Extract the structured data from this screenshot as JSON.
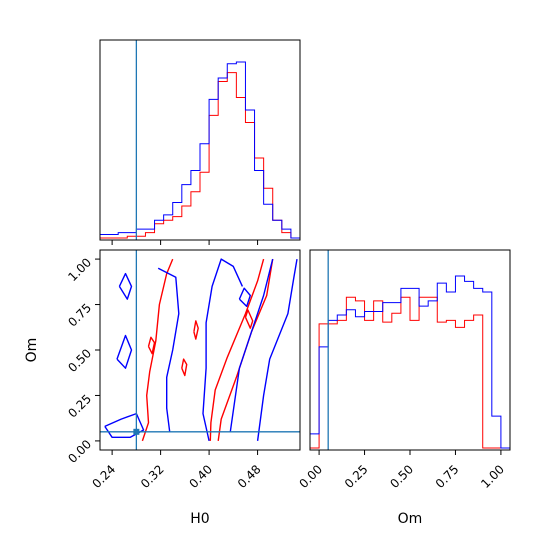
{
  "chart_data": {
    "type": "corner",
    "parameters": [
      "H0",
      "Om"
    ],
    "truth": {
      "H0": 0.28,
      "Om": 0.05
    },
    "colors": {
      "series_a": "#ff0000",
      "series_b": "#0000ff",
      "truth": "#1f77b4"
    },
    "axes": {
      "H0": {
        "range": [
          0.22,
          0.55
        ],
        "ticks": [
          0.24,
          0.32,
          0.4,
          0.48
        ],
        "tick_labels": [
          "0.24",
          "0.32",
          "0.40",
          "0.48"
        ]
      },
      "Om": {
        "range": [
          -0.05,
          1.05
        ],
        "ticks": [
          0.0,
          0.25,
          0.5,
          0.75,
          1.0
        ],
        "tick_labels": [
          "0.00",
          "0.25",
          "0.50",
          "0.75",
          "1.00"
        ]
      }
    },
    "xlabels": [
      "H0",
      "Om"
    ],
    "ylabel": "Om",
    "hist_H0": {
      "bin_edges": [
        0.22,
        0.235,
        0.25,
        0.265,
        0.28,
        0.295,
        0.31,
        0.325,
        0.34,
        0.355,
        0.37,
        0.385,
        0.4,
        0.415,
        0.43,
        0.445,
        0.46,
        0.475,
        0.49,
        0.505,
        0.52,
        0.535,
        0.55
      ],
      "series_a": [
        0.0,
        0.0,
        0.0,
        0.01,
        0.01,
        0.03,
        0.08,
        0.1,
        0.12,
        0.18,
        0.26,
        0.37,
        0.69,
        0.88,
        0.93,
        0.79,
        0.65,
        0.45,
        0.28,
        0.1,
        0.03,
        0.0
      ],
      "series_b": [
        0.02,
        0.02,
        0.03,
        0.03,
        0.05,
        0.05,
        0.1,
        0.13,
        0.2,
        0.3,
        0.38,
        0.53,
        0.78,
        0.9,
        0.98,
        0.99,
        0.72,
        0.38,
        0.19,
        0.1,
        0.05,
        0.0
      ]
    },
    "hist_Om": {
      "bin_edges": [
        -0.05,
        0.0,
        0.05,
        0.1,
        0.15,
        0.2,
        0.25,
        0.3,
        0.35,
        0.4,
        0.45,
        0.5,
        0.55,
        0.6,
        0.65,
        0.7,
        0.75,
        0.8,
        0.85,
        0.9,
        0.95,
        1.0,
        1.05
      ],
      "series_a": [
        0.0,
        0.7,
        0.7,
        0.72,
        0.85,
        0.83,
        0.72,
        0.83,
        0.71,
        0.76,
        0.85,
        0.72,
        0.85,
        0.85,
        0.71,
        0.72,
        0.68,
        0.72,
        0.75,
        0.0,
        0.0,
        0.0
      ],
      "series_b": [
        0.08,
        0.57,
        0.72,
        0.75,
        0.78,
        0.74,
        0.77,
        0.77,
        0.82,
        0.82,
        0.9,
        0.9,
        0.8,
        0.83,
        0.93,
        0.88,
        0.97,
        0.94,
        0.9,
        0.88,
        0.18,
        0.0
      ]
    },
    "contours_2d": {
      "series_a": [
        [
          [
            0.29,
            0.0
          ],
          [
            0.3,
            0.1
          ],
          [
            0.297,
            0.25
          ],
          [
            0.302,
            0.38
          ],
          [
            0.312,
            0.55
          ],
          [
            0.318,
            0.75
          ],
          [
            0.33,
            0.92
          ],
          [
            0.34,
            1.0
          ]
        ],
        [
          [
            0.402,
            0.0
          ],
          [
            0.403,
            0.1
          ],
          [
            0.41,
            0.28
          ],
          [
            0.43,
            0.46
          ],
          [
            0.46,
            0.7
          ],
          [
            0.48,
            0.88
          ],
          [
            0.49,
            1.0
          ]
        ],
        [
          [
            0.415,
            0.0
          ],
          [
            0.42,
            0.12
          ],
          [
            0.445,
            0.35
          ],
          [
            0.47,
            0.6
          ],
          [
            0.495,
            0.8
          ],
          [
            0.505,
            1.0
          ]
        ],
        [
          [
            0.46,
            0.68
          ],
          [
            0.468,
            0.62
          ],
          [
            0.472,
            0.66
          ],
          [
            0.464,
            0.72
          ],
          [
            0.46,
            0.68
          ]
        ],
        [
          [
            0.375,
            0.6
          ],
          [
            0.378,
            0.56
          ],
          [
            0.382,
            0.62
          ],
          [
            0.378,
            0.66
          ],
          [
            0.375,
            0.6
          ]
        ],
        [
          [
            0.355,
            0.4
          ],
          [
            0.36,
            0.36
          ],
          [
            0.363,
            0.42
          ],
          [
            0.358,
            0.45
          ],
          [
            0.355,
            0.4
          ]
        ],
        [
          [
            0.3,
            0.52
          ],
          [
            0.306,
            0.48
          ],
          [
            0.31,
            0.54
          ],
          [
            0.304,
            0.57
          ],
          [
            0.3,
            0.52
          ]
        ]
      ],
      "series_b": [
        [
          [
            0.252,
            0.85
          ],
          [
            0.265,
            0.78
          ],
          [
            0.272,
            0.85
          ],
          [
            0.262,
            0.92
          ],
          [
            0.252,
            0.85
          ]
        ],
        [
          [
            0.248,
            0.45
          ],
          [
            0.262,
            0.4
          ],
          [
            0.272,
            0.5
          ],
          [
            0.262,
            0.58
          ],
          [
            0.248,
            0.45
          ]
        ],
        [
          [
            0.228,
            0.08
          ],
          [
            0.255,
            0.12
          ],
          [
            0.28,
            0.15
          ],
          [
            0.292,
            0.06
          ],
          [
            0.27,
            0.02
          ],
          [
            0.24,
            0.02
          ],
          [
            0.228,
            0.08
          ]
        ],
        [
          [
            0.316,
            0.95
          ],
          [
            0.345,
            0.9
          ],
          [
            0.35,
            0.7
          ],
          [
            0.34,
            0.5
          ],
          [
            0.33,
            0.35
          ],
          [
            0.33,
            0.18
          ],
          [
            0.335,
            0.05
          ]
        ],
        [
          [
            0.4,
            0.0
          ],
          [
            0.39,
            0.15
          ],
          [
            0.395,
            0.4
          ],
          [
            0.395,
            0.65
          ],
          [
            0.405,
            0.85
          ],
          [
            0.42,
            1.0
          ],
          [
            0.44,
            0.96
          ],
          [
            0.455,
            0.85
          ]
        ],
        [
          [
            0.435,
            0.05
          ],
          [
            0.45,
            0.4
          ],
          [
            0.47,
            0.6
          ],
          [
            0.49,
            0.8
          ],
          [
            0.505,
            1.0
          ]
        ],
        [
          [
            0.48,
            0.0
          ],
          [
            0.49,
            0.25
          ],
          [
            0.5,
            0.45
          ],
          [
            0.53,
            0.7
          ],
          [
            0.54,
            0.9
          ],
          [
            0.545,
            1.0
          ]
        ],
        [
          [
            0.45,
            0.78
          ],
          [
            0.462,
            0.74
          ],
          [
            0.468,
            0.8
          ],
          [
            0.458,
            0.84
          ],
          [
            0.45,
            0.78
          ]
        ]
      ]
    }
  }
}
